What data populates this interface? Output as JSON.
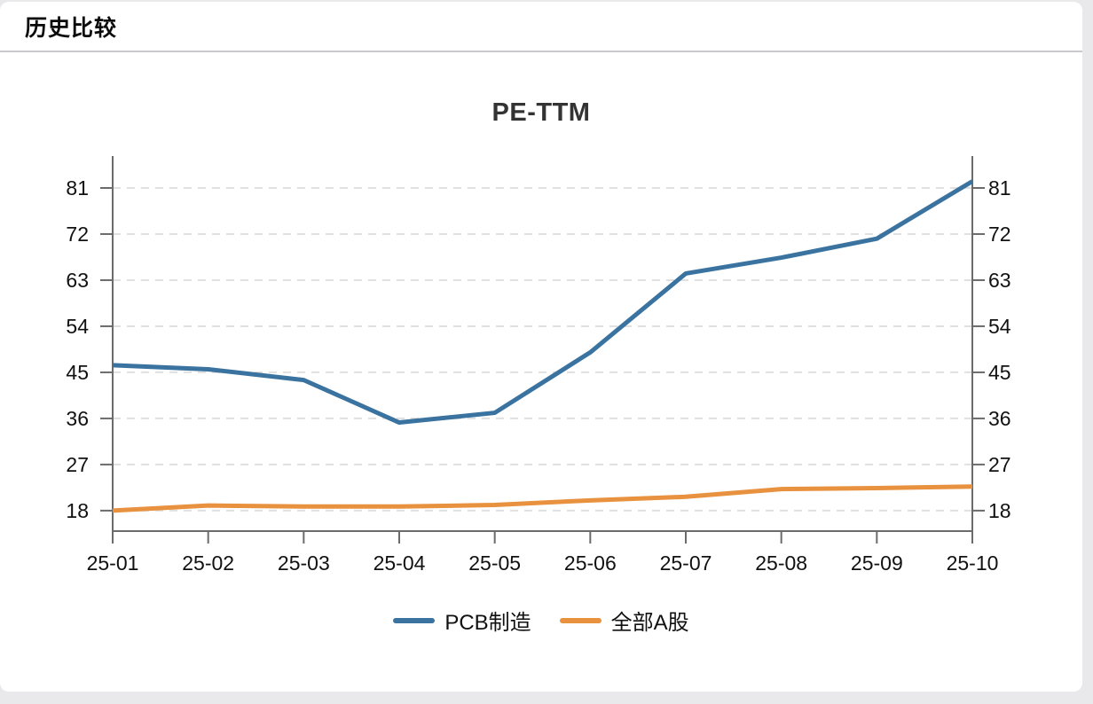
{
  "page": {
    "background_color": "#e9e9eb",
    "card_color": "#ffffff"
  },
  "header": {
    "title": "历史比较"
  },
  "chart_data": {
    "type": "line",
    "title": "PE-TTM",
    "categories": [
      "25-01",
      "25-02",
      "25-03",
      "25-04",
      "25-05",
      "25-06",
      "25-07",
      "25-08",
      "25-09",
      "25-10"
    ],
    "series": [
      {
        "name": "PCB制造",
        "color": "#3a73a0",
        "values": [
          46.4,
          45.6,
          43.5,
          35.2,
          37.1,
          48.9,
          64.3,
          67.4,
          71.1,
          82.3
        ]
      },
      {
        "name": "全部A股",
        "color": "#e8913f",
        "values": [
          18.0,
          19.0,
          18.8,
          18.8,
          19.1,
          20.0,
          20.7,
          22.2,
          22.4,
          22.7
        ]
      }
    ],
    "y_ticks": [
      18,
      27,
      36,
      45,
      54,
      63,
      72,
      81
    ],
    "ylim": [
      14,
      85.5
    ],
    "y_axis_sides": "both",
    "grid": "horizontal-dashed",
    "grid_color": "#e0e0e0",
    "axis_color": "#6b6b6b",
    "legend_position": "bottom"
  }
}
